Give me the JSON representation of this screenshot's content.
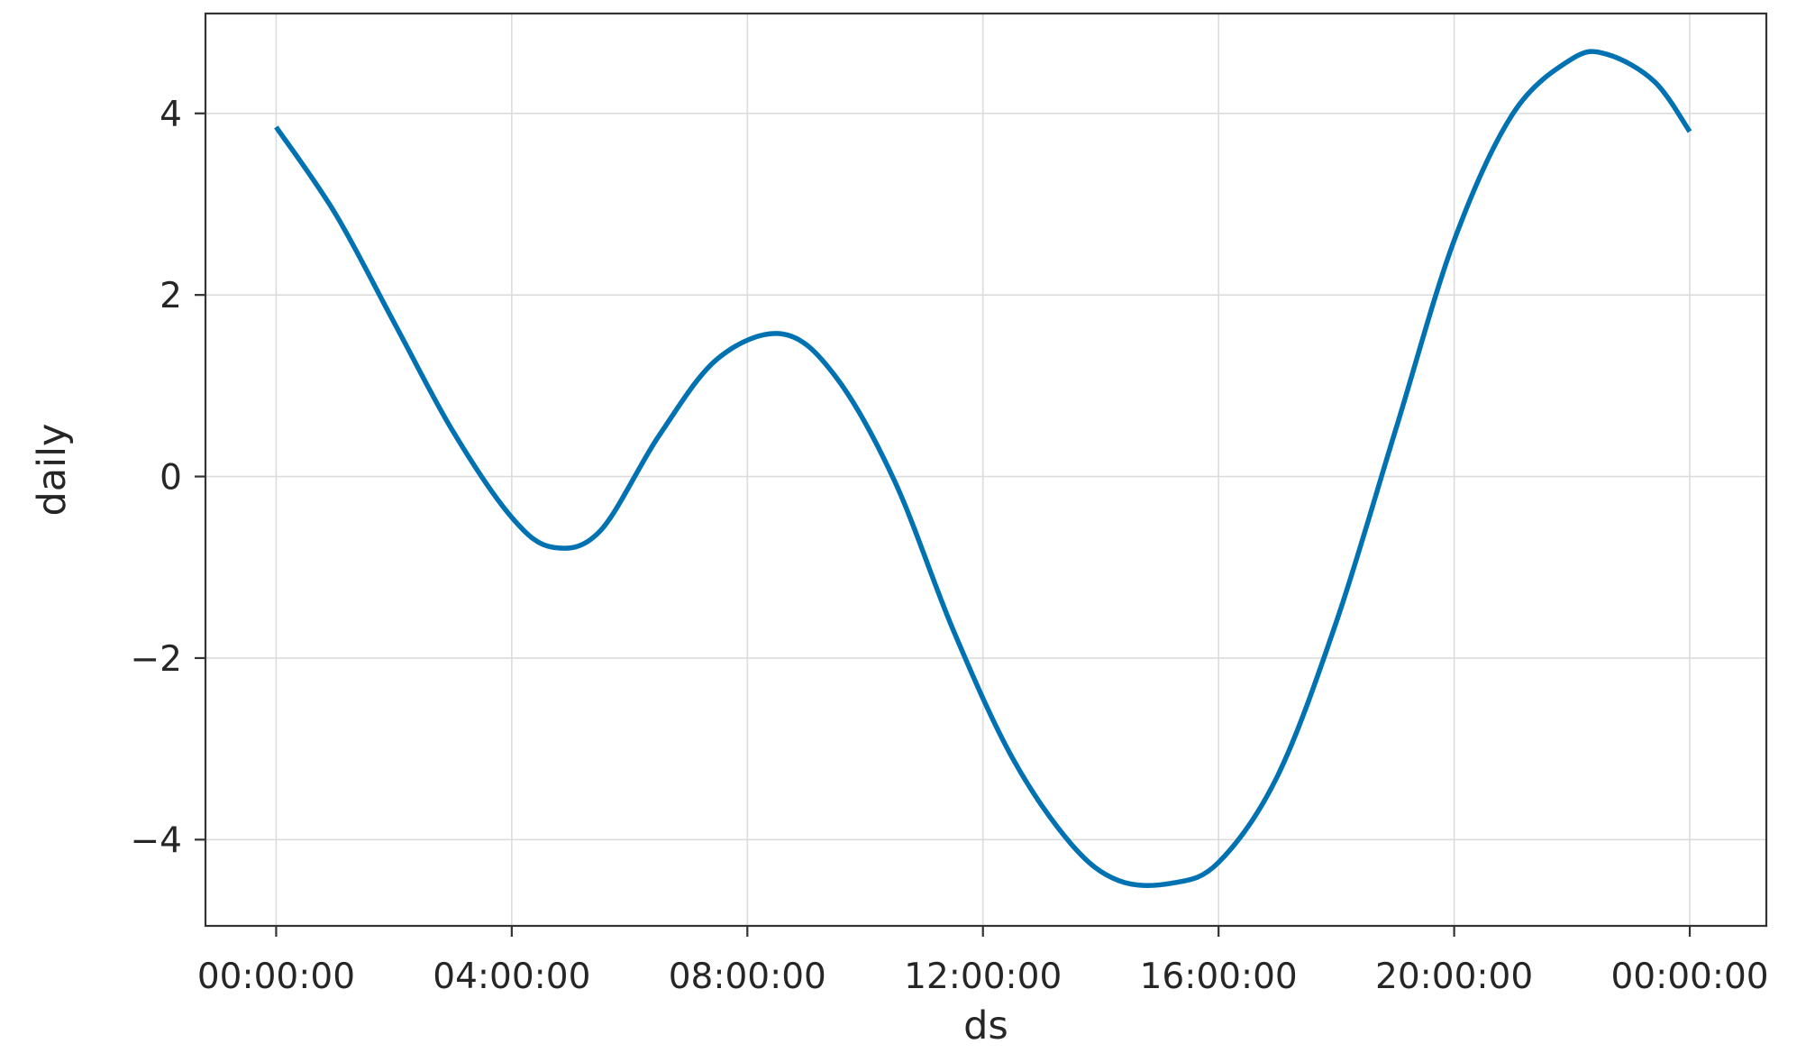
{
  "chart_data": {
    "type": "line",
    "title": "",
    "xlabel": "ds",
    "ylabel": "daily",
    "x_tick_labels": [
      "00:00:00",
      "04:00:00",
      "08:00:00",
      "12:00:00",
      "16:00:00",
      "20:00:00",
      "00:00:00"
    ],
    "x_ticks_hours": [
      0,
      4,
      8,
      12,
      16,
      20,
      24
    ],
    "x_range_hours": [
      -1.2,
      25.3
    ],
    "y_ticks": [
      -4,
      -2,
      0,
      2,
      4
    ],
    "y_tick_labels": [
      "−4",
      "−2",
      "0",
      "2",
      "4"
    ],
    "ylim": [
      -4.95,
      5.1
    ],
    "grid": true,
    "series": [
      {
        "color": "#0072B2",
        "x_hours": [
          0,
          1,
          2,
          3,
          4,
          4.7,
          5.5,
          6.5,
          7.5,
          8.6,
          9.5,
          10.5,
          11.5,
          12.5,
          13.5,
          14.3,
          15.2,
          16,
          17,
          18,
          19,
          20,
          21,
          22,
          22.6,
          23.4,
          24
        ],
        "values": [
          3.85,
          2.9,
          1.7,
          0.5,
          -0.45,
          -0.78,
          -0.6,
          0.45,
          1.3,
          1.57,
          1.1,
          -0.05,
          -1.7,
          -3.1,
          -4.05,
          -4.45,
          -4.48,
          -4.25,
          -3.3,
          -1.6,
          0.5,
          2.6,
          4.0,
          4.6,
          4.65,
          4.35,
          3.8
        ]
      }
    ]
  }
}
